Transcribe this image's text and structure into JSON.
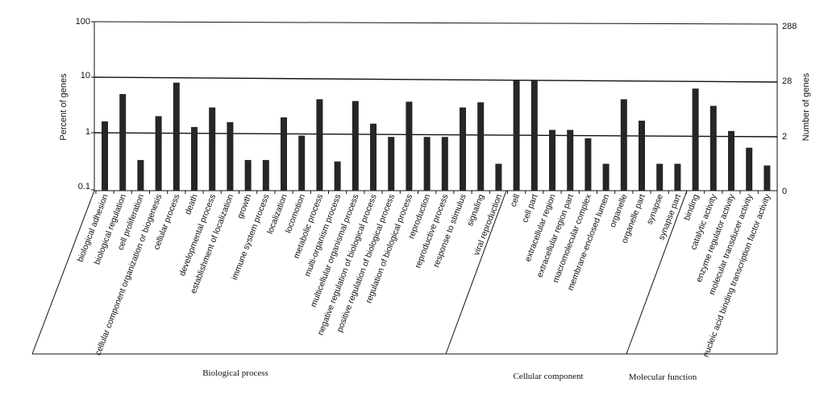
{
  "chart_data": {
    "type": "bar",
    "left_axis": {
      "title": "Percent of genes",
      "scale": "log",
      "range": [
        0.1,
        100
      ],
      "tick_labels": [
        "100",
        "10",
        "1",
        "0.1"
      ]
    },
    "right_axis": {
      "title": "Number of genes",
      "tick_labels": [
        "288",
        "28",
        "2",
        "0"
      ]
    },
    "categories": [
      "biological adhesion",
      "biological regulation",
      "cell proliferation",
      "cellular component organization or biogenesis",
      "cellular process",
      "death",
      "developmental process",
      "establishment of localization",
      "growth",
      "immune system process",
      "localization",
      "locomotion",
      "metabolic process",
      "multi-organism process",
      "multicellular organismal process",
      "negative regulation of biological process",
      "positive regulation of biological process",
      "regulation of biological process",
      "reproduction",
      "reproductive process",
      "response to stimulus",
      "signaling",
      "viral reproduction",
      "cell",
      "cell part",
      "extracellular region",
      "extracellular region part",
      "macromolecular complex",
      "membrane-enclosed lumen",
      "organelle",
      "organelle part",
      "synapse",
      "synapse part",
      "binding",
      "catalytic activity",
      "enzyme regulator activity",
      "molecular transducer activity",
      "nucleic acid binding transcription factor activity"
    ],
    "values": [
      1.7,
      5.2,
      0.35,
      2.1,
      8.3,
      1.35,
      3.0,
      1.65,
      0.35,
      0.35,
      2.0,
      0.95,
      4.2,
      0.33,
      3.9,
      1.55,
      0.9,
      3.8,
      0.9,
      0.9,
      3.0,
      3.7,
      0.3,
      9.0,
      9.0,
      1.2,
      1.2,
      0.85,
      0.3,
      4.2,
      1.75,
      0.3,
      0.3,
      6.5,
      3.2,
      1.15,
      0.58,
      0.28
    ],
    "groups": [
      {
        "name": "Biological process",
        "start": 0,
        "end": 22
      },
      {
        "name": "Cellular component",
        "start": 23,
        "end": 32
      },
      {
        "name": "Molecular function",
        "start": 33,
        "end": 37
      }
    ],
    "grid": false,
    "legend": "none"
  }
}
